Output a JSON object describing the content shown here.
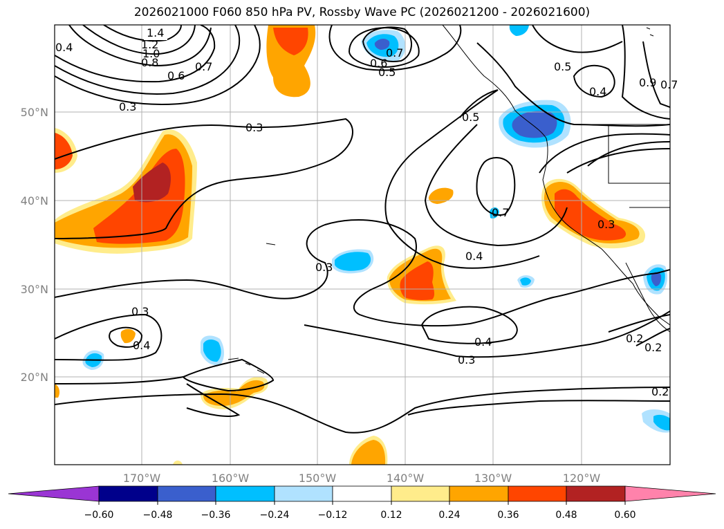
{
  "title": "2026021000 F060 850 hPa PV, Rossby Wave PC (2026021200 - 2026021600)",
  "map": {
    "lon_labels": [
      "170°W",
      "160°W",
      "150°W",
      "140°W",
      "130°W",
      "120°W"
    ],
    "lat_labels": [
      "50°N",
      "40°N",
      "30°N",
      "20°N"
    ],
    "contour_labels": [
      "1.4",
      "1.2",
      "1.0",
      "0.8",
      "0.6",
      "0.4",
      "0.7",
      "0.3",
      "0.3",
      "0.7",
      "0.6",
      "0.5",
      "0.5",
      "0.5",
      "0.4",
      "0.9",
      "0.7",
      "0.7",
      "0.3",
      "0.4",
      "0.3",
      "0.4",
      "0.4",
      "0.3",
      "0.2",
      "0.2",
      "0.3",
      "0.2"
    ]
  },
  "colorbar": {
    "ticks": [
      "−0.60",
      "−0.48",
      "−0.36",
      "−0.24",
      "−0.12",
      "0.12",
      "0.24",
      "0.36",
      "0.48",
      "0.60"
    ],
    "colors": [
      "#9a35d4",
      "#00008b",
      "#3a5fcd",
      "#00bfff",
      "#b0e2ff",
      "#ffffff",
      "#ffec8b",
      "#ffa500",
      "#ff4500",
      "#b22222",
      "#ff82ab"
    ]
  }
}
